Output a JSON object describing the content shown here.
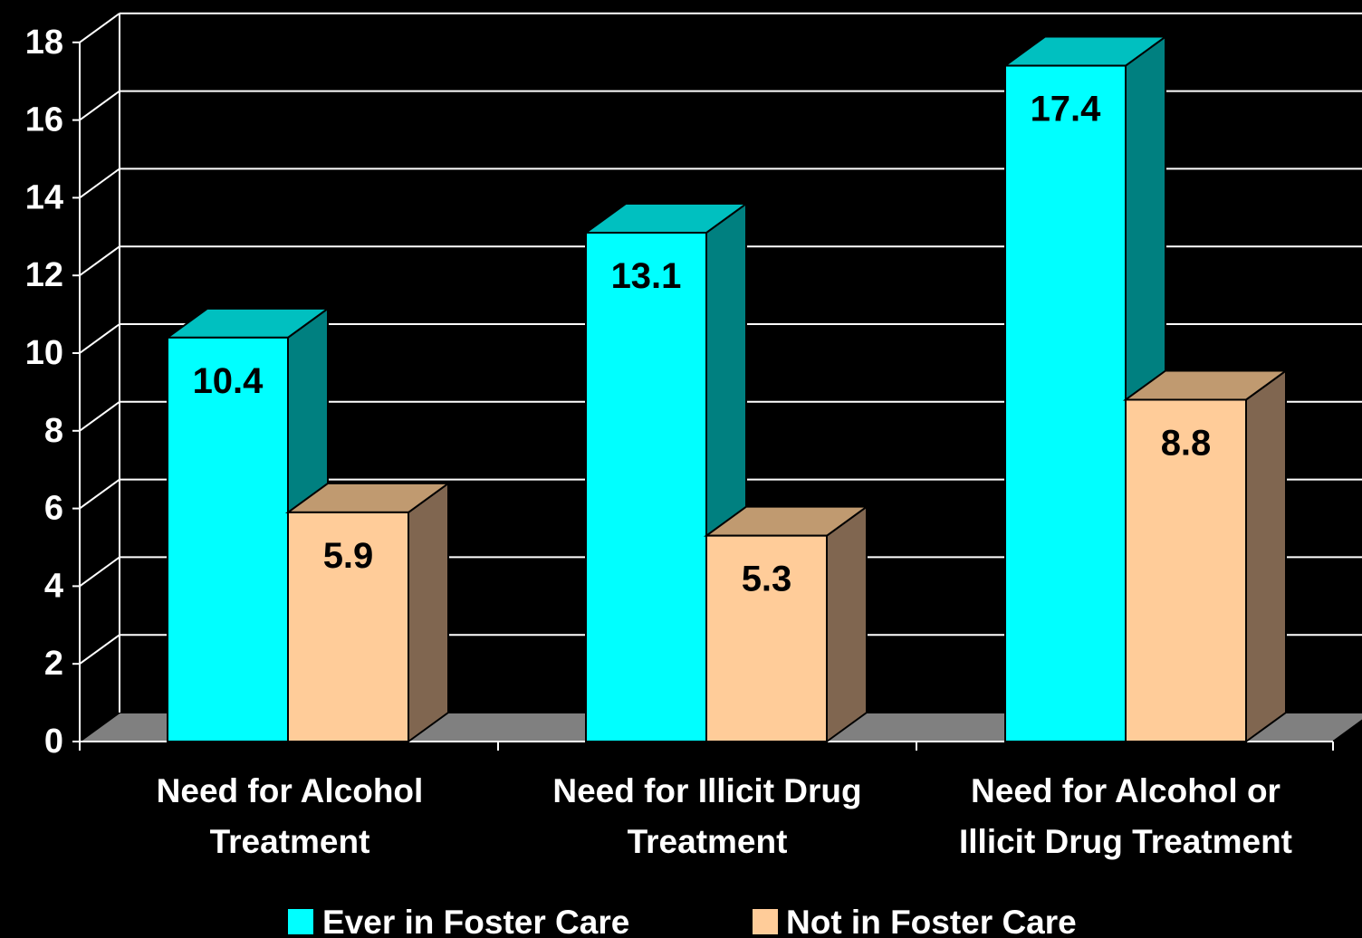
{
  "chart_data": {
    "type": "bar",
    "title": "",
    "xlabel": "",
    "ylabel": "",
    "ylim": [
      0,
      18
    ],
    "yticks": [
      0,
      2,
      4,
      6,
      8,
      10,
      12,
      14,
      16,
      18
    ],
    "grid": true,
    "style": "3d-clustered",
    "legend_position": "bottom",
    "categories": [
      [
        "Need for Alcohol",
        "Treatment"
      ],
      [
        "Need for Illicit Drug",
        "Treatment"
      ],
      [
        "Need for Alcohol or",
        "Illicit Drug Treatment"
      ]
    ],
    "series": [
      {
        "name": "Ever in Foster Care",
        "values": [
          10.4,
          13.1,
          17.4
        ],
        "labels": [
          "10.4",
          "13.1",
          "17.4"
        ],
        "color": "#00FFFF",
        "side_color": "#008080",
        "top_color": "#00C0C0"
      },
      {
        "name": "Not in Foster Care",
        "values": [
          5.9,
          5.3,
          8.8
        ],
        "labels": [
          "5.9",
          "5.3",
          "8.8"
        ],
        "color": "#FFCC99",
        "side_color": "#806650",
        "top_color": "#C09A70"
      }
    ],
    "colors": {
      "background": "#000000",
      "floor": "#808080",
      "grid": "#FFFFFF",
      "text": "#FFFFFF",
      "data_label": "#000000"
    }
  }
}
